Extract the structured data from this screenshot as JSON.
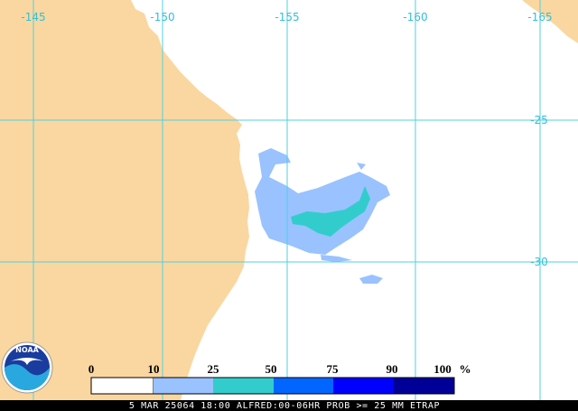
{
  "map": {
    "longitude_labels": [
      "-145",
      "-150",
      "-155",
      "-160",
      "-165"
    ],
    "latitude_labels": [
      "-25",
      "-30"
    ]
  },
  "legend": {
    "labels": [
      "0",
      "10",
      "25",
      "50",
      "75",
      "90",
      "100"
    ],
    "unit": "%"
  },
  "logo": {
    "text": "NOAA"
  },
  "footer": "5 MAR 25064 18:00 ALFRED:00-06HR PROB >= 25 MM ETRAP"
}
